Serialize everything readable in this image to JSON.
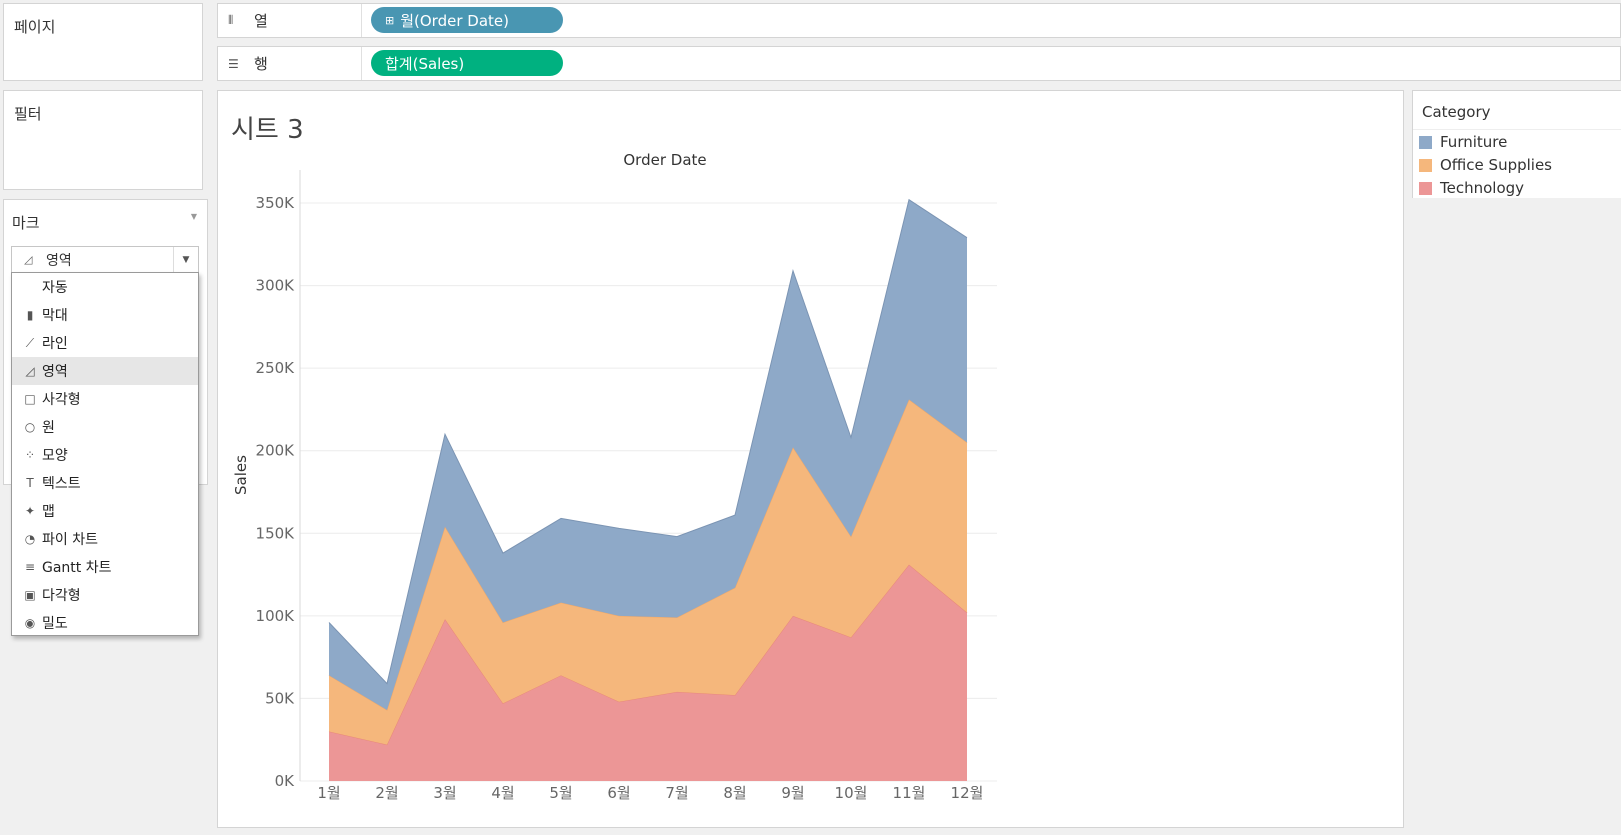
{
  "pages_panel": {
    "title": "페이지"
  },
  "filters_panel": {
    "title": "필터"
  },
  "marks_panel": {
    "title": "마크",
    "selected_type": "영역",
    "menu_items": [
      {
        "label": "자동",
        "icon": "auto-icon"
      },
      {
        "label": "막대",
        "icon": "bar-chart-icon"
      },
      {
        "label": "라인",
        "icon": "line-chart-icon"
      },
      {
        "label": "영역",
        "icon": "area-chart-icon",
        "selected": true
      },
      {
        "label": "사각형",
        "icon": "square-icon"
      },
      {
        "label": "원",
        "icon": "circle-icon"
      },
      {
        "label": "모양",
        "icon": "shapes-icon"
      },
      {
        "label": "텍스트",
        "icon": "text-icon"
      },
      {
        "label": "맵",
        "icon": "map-icon"
      },
      {
        "label": "파이 차트",
        "icon": "pie-chart-icon"
      },
      {
        "label": "Gantt 차트",
        "icon": "gantt-icon"
      },
      {
        "label": "다각형",
        "icon": "polygon-icon"
      },
      {
        "label": "밀도",
        "icon": "density-icon"
      }
    ]
  },
  "columns_shelf": {
    "label": "열",
    "pill": "월(Order Date)",
    "pill_color": "#4996b2"
  },
  "rows_shelf": {
    "label": "행",
    "pill": "합계(Sales)",
    "pill_color": "#00b180"
  },
  "sheet": {
    "title": "시트 3"
  },
  "legend": {
    "title": "Category",
    "items": [
      {
        "label": "Furniture",
        "color": "#8ea9c8"
      },
      {
        "label": "Office Supplies",
        "color": "#f5b77c"
      },
      {
        "label": "Technology",
        "color": "#ec9696"
      }
    ]
  },
  "chart_data": {
    "type": "area",
    "stacked": true,
    "title": "Order Date",
    "xlabel": "",
    "ylabel": "Sales",
    "categories": [
      "1월",
      "2월",
      "3월",
      "4월",
      "5월",
      "6월",
      "7월",
      "8월",
      "9월",
      "10월",
      "11월",
      "12월"
    ],
    "y_ticks": [
      "0K",
      "50K",
      "100K",
      "150K",
      "200K",
      "250K",
      "300K",
      "350K"
    ],
    "ylim": [
      0,
      370000
    ],
    "grid": true,
    "legend_position": "right",
    "series": [
      {
        "name": "Technology",
        "color": "#ec9696",
        "line_color": "#e8887a",
        "values": [
          30000,
          22000,
          98000,
          47000,
          64000,
          48000,
          54000,
          52000,
          100000,
          87000,
          131000,
          102000
        ]
      },
      {
        "name": "Office Supplies",
        "color": "#f5b77c",
        "line_color": "#f0a868",
        "values": [
          34000,
          21000,
          56000,
          49000,
          44000,
          52000,
          45000,
          65000,
          102000,
          61000,
          100000,
          103000
        ]
      },
      {
        "name": "Furniture",
        "color": "#8ea9c8",
        "line_color": "#7b94b3",
        "values": [
          32000,
          16000,
          56000,
          42000,
          51000,
          53000,
          49000,
          44000,
          107000,
          60000,
          121000,
          124000
        ]
      }
    ]
  }
}
